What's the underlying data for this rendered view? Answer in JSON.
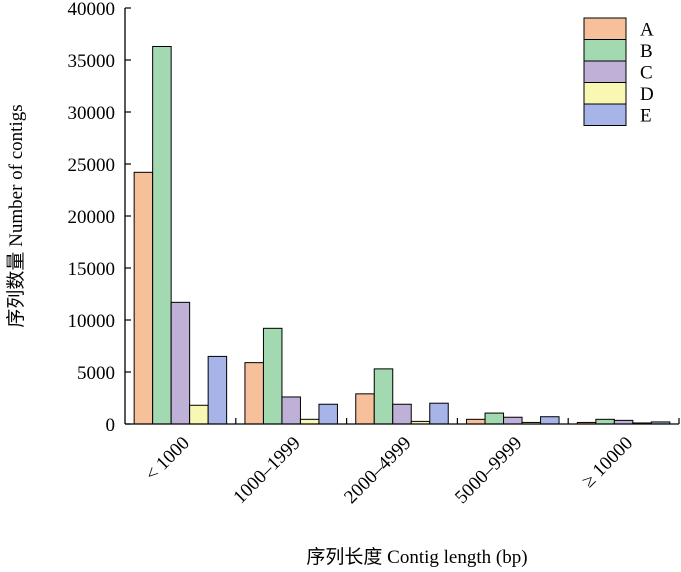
{
  "chart_data": {
    "type": "bar",
    "xlabel": "序列长度 Contig length (bp)",
    "ylabel": "序列数量 Number of contigs",
    "categories": [
      "< 1000",
      "1000–1999",
      "2000–4999",
      "5000–9999",
      "≥ 10000"
    ],
    "ylim": [
      0,
      40000
    ],
    "yticks": [
      "0",
      "5000",
      "10000",
      "15000",
      "20000",
      "25000",
      "30000",
      "35000",
      "40000"
    ],
    "legend_position": "top-right",
    "grid": false,
    "series": [
      {
        "name": "A",
        "color": "#f5c09a",
        "values": [
          24200,
          5900,
          2900,
          450,
          150
        ]
      },
      {
        "name": "B",
        "color": "#a3d9b1",
        "values": [
          36300,
          9200,
          5300,
          1050,
          450
        ]
      },
      {
        "name": "C",
        "color": "#bfb0d8",
        "values": [
          11700,
          2600,
          1900,
          650,
          350
        ]
      },
      {
        "name": "D",
        "color": "#f8f8b4",
        "values": [
          1800,
          450,
          250,
          150,
          100
        ]
      },
      {
        "name": "E",
        "color": "#a6b4e8",
        "values": [
          6500,
          1900,
          2000,
          700,
          200
        ]
      }
    ]
  }
}
